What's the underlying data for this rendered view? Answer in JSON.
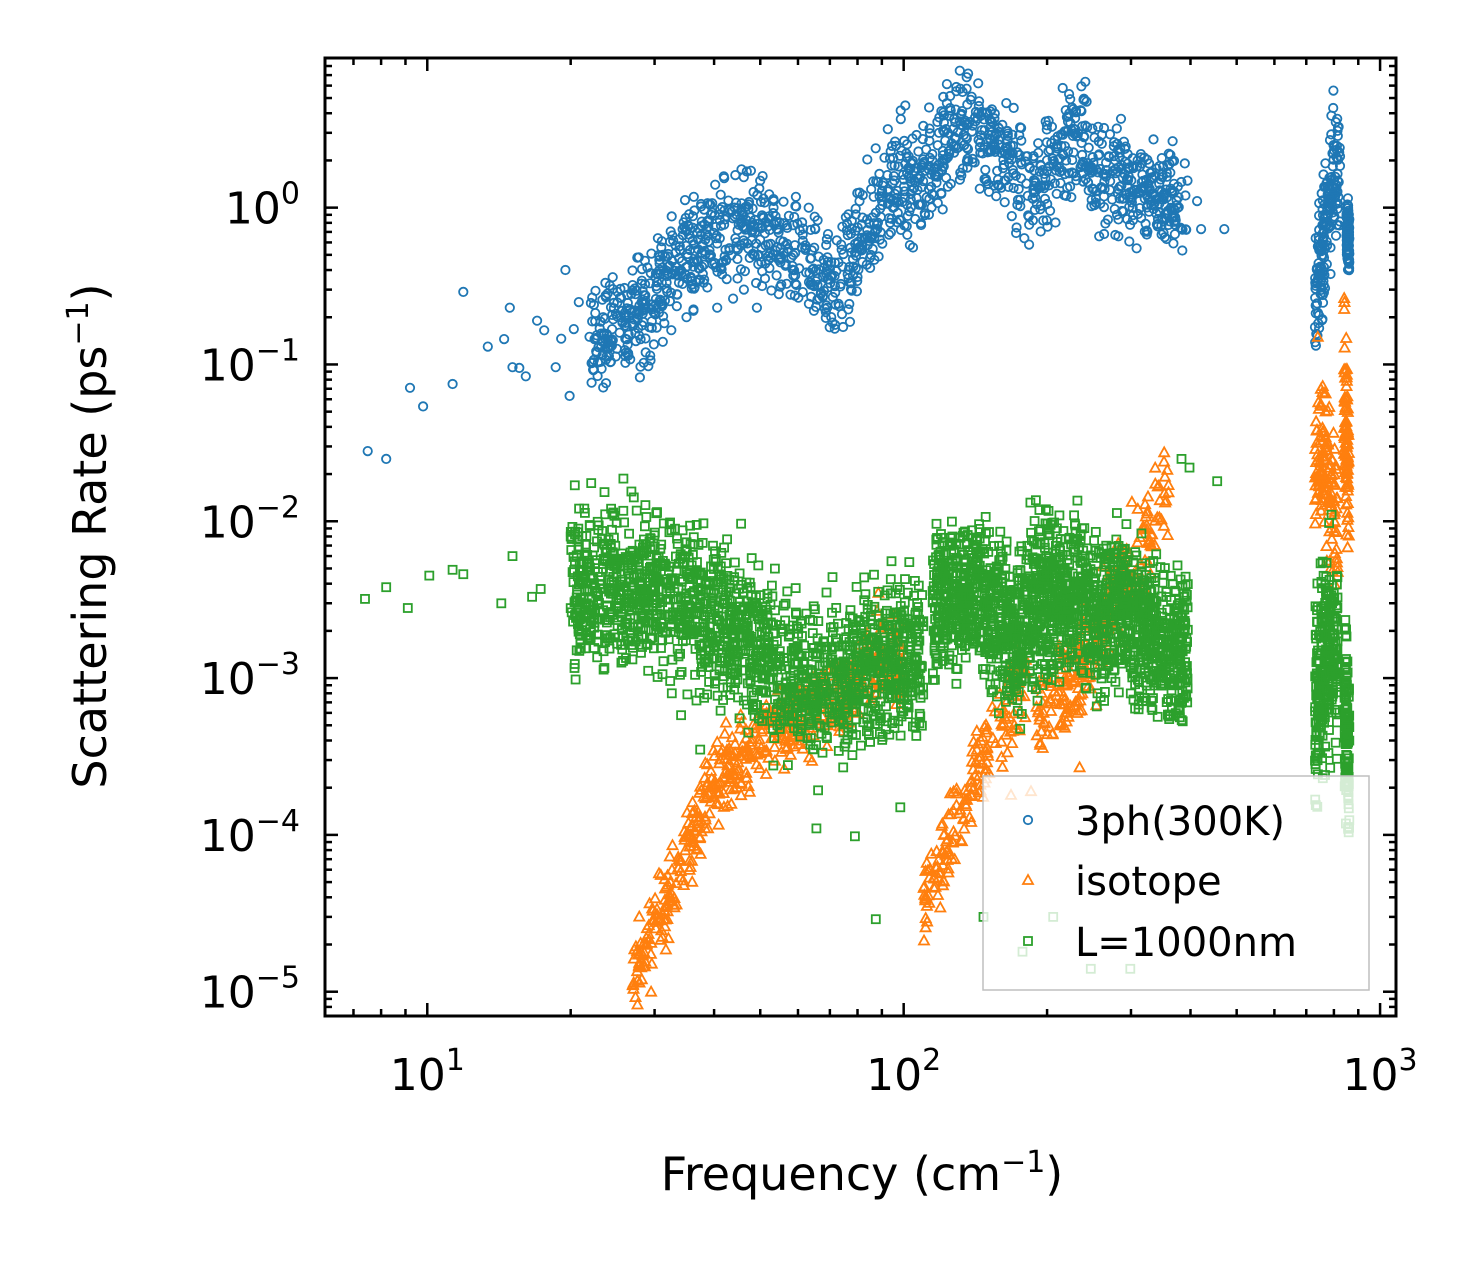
{
  "chart_data": {
    "type": "scatter",
    "title": "",
    "xlabel": {
      "text": "Frequency (cm",
      "sup": "−1",
      "close": ")"
    },
    "ylabel": {
      "text": "Scattering Rate (ps",
      "sup": "−1",
      "close": ")"
    },
    "xscale": "log",
    "yscale": "log",
    "xlim": [
      6.1,
      1080
    ],
    "ylim": [
      7e-06,
      9
    ],
    "xticks": [
      {
        "base": "10",
        "exp": "1",
        "value": 10
      },
      {
        "base": "10",
        "exp": "2",
        "value": 100
      },
      {
        "base": "10",
        "exp": "3",
        "value": 1000
      }
    ],
    "yticks": [
      {
        "base": "10",
        "exp": "0",
        "value": 1
      },
      {
        "base": "10",
        "exp": "−1",
        "value": 0.1
      },
      {
        "base": "10",
        "exp": "−2",
        "value": 0.01
      },
      {
        "base": "10",
        "exp": "−3",
        "value": 0.001
      },
      {
        "base": "10",
        "exp": "−4",
        "value": 0.0001
      },
      {
        "base": "10",
        "exp": "−5",
        "value": 1e-05
      }
    ],
    "legend": {
      "placement": "lower-right"
    },
    "series": [
      {
        "name": "3ph(300K)",
        "marker": "circle",
        "color": "#1f77b4",
        "points": [
          [
            7.5,
            0.028
          ],
          [
            8.2,
            0.025
          ],
          [
            9.2,
            0.071
          ],
          [
            9.8,
            0.054
          ],
          [
            11.3,
            0.075
          ],
          [
            11.9,
            0.29
          ],
          [
            13.4,
            0.13
          ],
          [
            14.5,
            0.145
          ],
          [
            14.9,
            0.23
          ],
          [
            15.1,
            0.096
          ],
          [
            15.6,
            0.095
          ],
          [
            16.1,
            0.084
          ],
          [
            17.0,
            0.19
          ],
          [
            17.6,
            0.165
          ],
          [
            18.6,
            0.096
          ],
          [
            19.1,
            0.146
          ],
          [
            19.5,
            0.4
          ],
          [
            19.9,
            0.063
          ],
          [
            20.3,
            0.168
          ],
          [
            20.8,
            0.25
          ],
          [
            21.9,
            0.15
          ],
          [
            22.5,
            0.145
          ],
          [
            23.4,
            0.2
          ],
          [
            24.5,
            0.36
          ],
          [
            26.0,
            0.2
          ],
          [
            27.6,
            0.48
          ],
          [
            31.2,
            0.5
          ],
          [
            33.2,
            0.42
          ],
          [
            35.0,
            0.2
          ],
          [
            36.2,
            0.22
          ],
          [
            40.6,
            0.23
          ],
          [
            46.2,
            0.3
          ],
          [
            49.2,
            0.23
          ],
          [
            54.1,
            0.37
          ],
          [
            64.8,
            0.22
          ],
          [
            70.9,
            0.185
          ],
          [
            81.9,
            0.45
          ],
          [
            111.5,
            2.35
          ],
          [
            120.9,
            2.3
          ],
          [
            172.0,
            1.6
          ],
          [
            222.5,
            5.3
          ],
          [
            251.5,
            2.8
          ],
          [
            316.0,
            1.45
          ],
          [
            413.0,
            1.1
          ],
          [
            421.0,
            0.73
          ],
          [
            471.0,
            0.73
          ]
        ],
        "bands": [
          {
            "xs": [
              22,
              28,
              33,
              38,
              45,
              52,
              58,
              65,
              72,
              80,
              90,
              100,
              110,
              120,
              130,
              140,
              152,
              165,
              178,
              190,
              205,
              220,
              235,
              250,
              270,
              290,
              315,
              340,
              365,
              395
            ],
            "ys": [
              0.15,
              0.2,
              0.42,
              0.6,
              0.7,
              0.72,
              0.5,
              0.4,
              0.3,
              0.55,
              1.1,
              1.6,
              1.5,
              2.3,
              2.9,
              3.0,
              2.8,
              2.0,
              1.5,
              1.2,
              2.0,
              2.5,
              2.9,
              2.0,
              1.6,
              1.5,
              1.3,
              1.2,
              1.0,
              1.1
            ],
            "spread": 0.3,
            "n": 1500
          },
          {
            "xs": [
              730,
              755,
              780,
              800,
              825
            ],
            "ys": [
              0.25,
              0.5,
              1.0,
              2.0,
              1.5
            ],
            "spread": 0.35,
            "n": 180
          },
          {
            "xs": [
              850,
              862
            ],
            "ys": [
              0.8,
              0.6
            ],
            "spread": 0.2,
            "n": 90
          }
        ]
      },
      {
        "name": "isotope",
        "marker": "triangle",
        "color": "#ff7f0e",
        "points": [
          [
            27.0,
            1.1e-05
          ],
          [
            28.2,
            1.2e-05
          ],
          [
            29.5,
            1e-05
          ],
          [
            88.5,
            0.0035
          ],
          [
            112.0,
            2.8e-05
          ],
          [
            128.0,
            7e-05
          ],
          [
            168.0,
            0.00018
          ],
          [
            185.0,
            0.00019
          ],
          [
            234.0,
            0.00027
          ],
          [
            310.0,
            0.012
          ],
          [
            352.0,
            0.024
          ],
          [
            740.0,
            0.15
          ],
          [
            842.0,
            0.25
          ]
        ],
        "bands": [
          {
            "xs": [
              27,
              30,
              33,
              36,
              40,
              45,
              50,
              55,
              62,
              70,
              80,
              90,
              100
            ],
            "ys": [
              1.2e-05,
              2.5e-05,
              5e-05,
              0.0001,
              0.0002,
              0.0003,
              0.0004,
              0.0005,
              0.0006,
              0.0007,
              0.001,
              0.0014,
              0.0012
            ],
            "spread": 0.22,
            "n": 560
          },
          {
            "xs": [
              110,
              115,
              122,
              132,
              145,
              160,
              172,
              182
            ],
            "ys": [
              4e-05,
              4e-05,
              8e-05,
              0.00015,
              0.00028,
              0.0005,
              0.0008,
              0.001
            ],
            "spread": 0.25,
            "n": 170
          },
          {
            "xs": [
              190,
              205,
              225,
              250,
              270,
              290,
              310,
              330,
              350,
              360
            ],
            "ys": [
              0.0005,
              0.0007,
              0.001,
              0.0015,
              0.0025,
              0.004,
              0.006,
              0.01,
              0.015,
              0.012
            ],
            "spread": 0.28,
            "n": 260
          },
          {
            "xs": [
              730,
              760,
              790,
              815
            ],
            "ys": [
              0.02,
              0.03,
              0.015,
              0.01
            ],
            "spread": 0.4,
            "n": 130
          },
          {
            "xs": [
              840,
              860
            ],
            "ys": [
              0.06,
              0.02
            ],
            "spread": 0.45,
            "n": 90
          }
        ]
      },
      {
        "name": "L=1000nm",
        "marker": "square",
        "color": "#2ca02c",
        "points": [
          [
            7.4,
            0.0032
          ],
          [
            8.2,
            0.0038
          ],
          [
            9.1,
            0.0028
          ],
          [
            10.1,
            0.0045
          ],
          [
            11.3,
            0.0049
          ],
          [
            11.9,
            0.0046
          ],
          [
            14.3,
            0.003
          ],
          [
            15.1,
            0.006
          ],
          [
            16.6,
            0.0033
          ],
          [
            17.3,
            0.0037
          ],
          [
            20.0,
            0.008
          ],
          [
            32.6,
            0.0008
          ],
          [
            34.1,
            0.00058
          ],
          [
            37.4,
            0.00035
          ],
          [
            65.6,
            0.00011
          ],
          [
            79.0,
            9.8e-05
          ],
          [
            87.4,
            2.9e-05
          ],
          [
            98.4,
            0.00015
          ],
          [
            147.1,
            3e-05
          ],
          [
            177.6,
            1.8e-05
          ],
          [
            206.0,
            3e-05
          ],
          [
            247.0,
            1.4e-05
          ],
          [
            299.0,
            1.4e-05
          ],
          [
            383.0,
            0.025
          ],
          [
            398.0,
            0.022
          ],
          [
            455.0,
            0.018
          ]
        ],
        "bands": [
          {
            "xs": [
              20,
              25,
              30,
              35,
              40,
              45,
              50,
              55,
              60,
              65,
              70,
              75,
              80,
              85,
              90,
              95,
              100,
              105,
              110
            ],
            "ys": [
              0.004,
              0.0038,
              0.0035,
              0.003,
              0.0025,
              0.002,
              0.0015,
              0.0012,
              0.001,
              0.0009,
              0.001,
              0.001,
              0.0011,
              0.0012,
              0.0012,
              0.0013,
              0.0015,
              0.0014,
              0.0013
            ],
            "spread": 0.42,
            "n": 1700
          },
          {
            "xs": [
              115,
              125,
              135,
              145,
              155,
              165,
              175,
              185,
              200,
              215,
              235,
              255,
              280,
              300,
              320,
              345,
              370,
              395
            ],
            "ys": [
              0.003,
              0.0035,
              0.003,
              0.0035,
              0.0025,
              0.002,
              0.0022,
              0.003,
              0.0035,
              0.003,
              0.0035,
              0.0025,
              0.003,
              0.0025,
              0.002,
              0.0018,
              0.0015,
              0.0015
            ],
            "spread": 0.42,
            "n": 1800
          },
          {
            "xs": [
              730,
              760,
              790,
              815
            ],
            "ys": [
              0.0006,
              0.0012,
              0.002,
              0.0015
            ],
            "spread": 0.55,
            "n": 260
          },
          {
            "xs": [
              842,
              862
            ],
            "ys": [
              0.0006,
              0.0003
            ],
            "spread": 0.5,
            "n": 120
          }
        ]
      }
    ]
  }
}
